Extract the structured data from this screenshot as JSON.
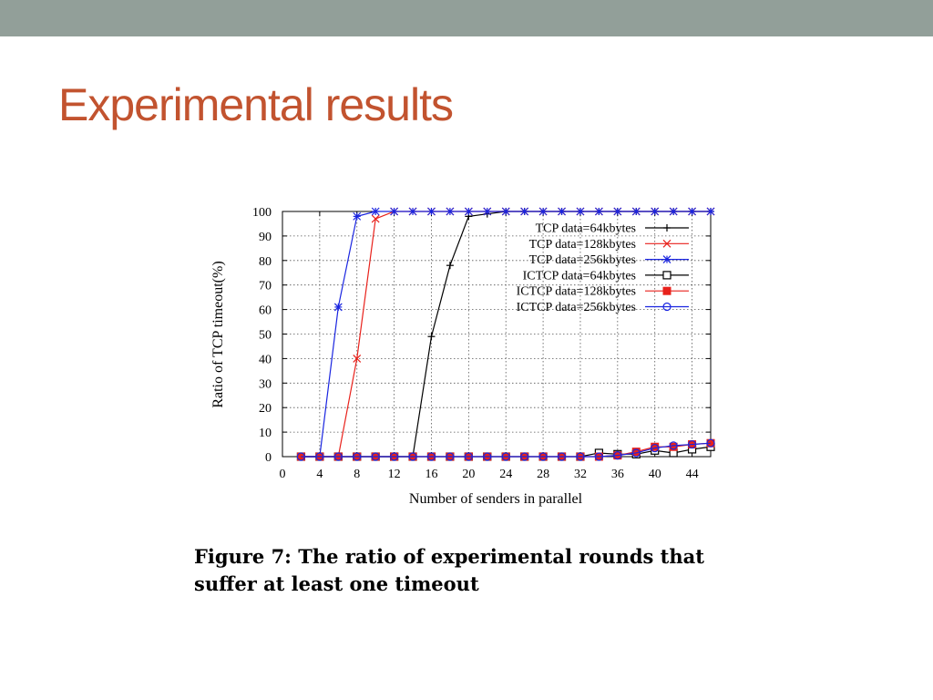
{
  "slide": {
    "title": "Experimental results",
    "caption_line1": "Figure 7: The ratio of experimental rounds that",
    "caption_line2": "suffer at least one timeout"
  },
  "colors": {
    "topbar": "#929f99",
    "title": "#c2532f"
  },
  "chart_data": {
    "type": "line",
    "xlabel": "Number of senders in parallel",
    "ylabel": "Ratio of TCP timeout(%)",
    "xlim": [
      0,
      46
    ],
    "ylim": [
      0,
      100
    ],
    "xticks": [
      0,
      4,
      8,
      12,
      16,
      20,
      24,
      28,
      32,
      36,
      40,
      44
    ],
    "yticks": [
      0,
      10,
      20,
      30,
      40,
      50,
      60,
      70,
      80,
      90,
      100
    ],
    "grid": true,
    "legend_position": "top-right",
    "x": [
      2,
      4,
      6,
      8,
      10,
      12,
      14,
      16,
      18,
      20,
      22,
      24,
      26,
      28,
      30,
      32,
      34,
      36,
      38,
      40,
      42,
      44,
      46
    ],
    "series": [
      {
        "name": "TCP data=64kbytes",
        "color": "#000000",
        "marker": "plus",
        "values": [
          0,
          0,
          0,
          0,
          0,
          0,
          0,
          49,
          78,
          98,
          99,
          100,
          100,
          100,
          100,
          100,
          100,
          100,
          100,
          100,
          100,
          100,
          100
        ]
      },
      {
        "name": "TCP data=128kbytes",
        "color": "#e8211b",
        "marker": "cross",
        "values": [
          0,
          0,
          0,
          40,
          97,
          100,
          100,
          100,
          100,
          100,
          100,
          100,
          100,
          100,
          100,
          100,
          100,
          100,
          100,
          100,
          100,
          100,
          100
        ]
      },
      {
        "name": "TCP data=256kbytes",
        "color": "#1a25e0",
        "marker": "star",
        "values": [
          0,
          0,
          61,
          98,
          100,
          100,
          100,
          100,
          100,
          100,
          100,
          100,
          100,
          100,
          100,
          100,
          100,
          100,
          100,
          100,
          100,
          100,
          100
        ]
      },
      {
        "name": "ICTCP data=64kbytes",
        "color": "#000000",
        "marker": "square",
        "values": [
          0,
          0,
          0,
          0,
          0,
          0,
          0,
          0,
          0,
          0,
          0,
          0,
          0,
          0,
          0,
          0,
          1.5,
          1,
          1,
          2.5,
          1.5,
          3,
          4
        ]
      },
      {
        "name": "ICTCP data=128kbytes",
        "color": "#e8211b",
        "marker": "filled-square",
        "values": [
          0,
          0,
          0,
          0,
          0,
          0,
          0,
          0,
          0,
          0,
          0,
          0,
          0,
          0,
          0,
          0,
          0,
          0.5,
          2,
          4,
          4,
          5,
          5.5
        ]
      },
      {
        "name": "ICTCP data=256kbytes",
        "color": "#1a25e0",
        "marker": "circle",
        "values": [
          0,
          0,
          0,
          0,
          0,
          0,
          0,
          0,
          0,
          0,
          0,
          0,
          0,
          0,
          0,
          0,
          0,
          0.5,
          1.5,
          3.5,
          4.5,
          5,
          5.5
        ]
      }
    ]
  }
}
